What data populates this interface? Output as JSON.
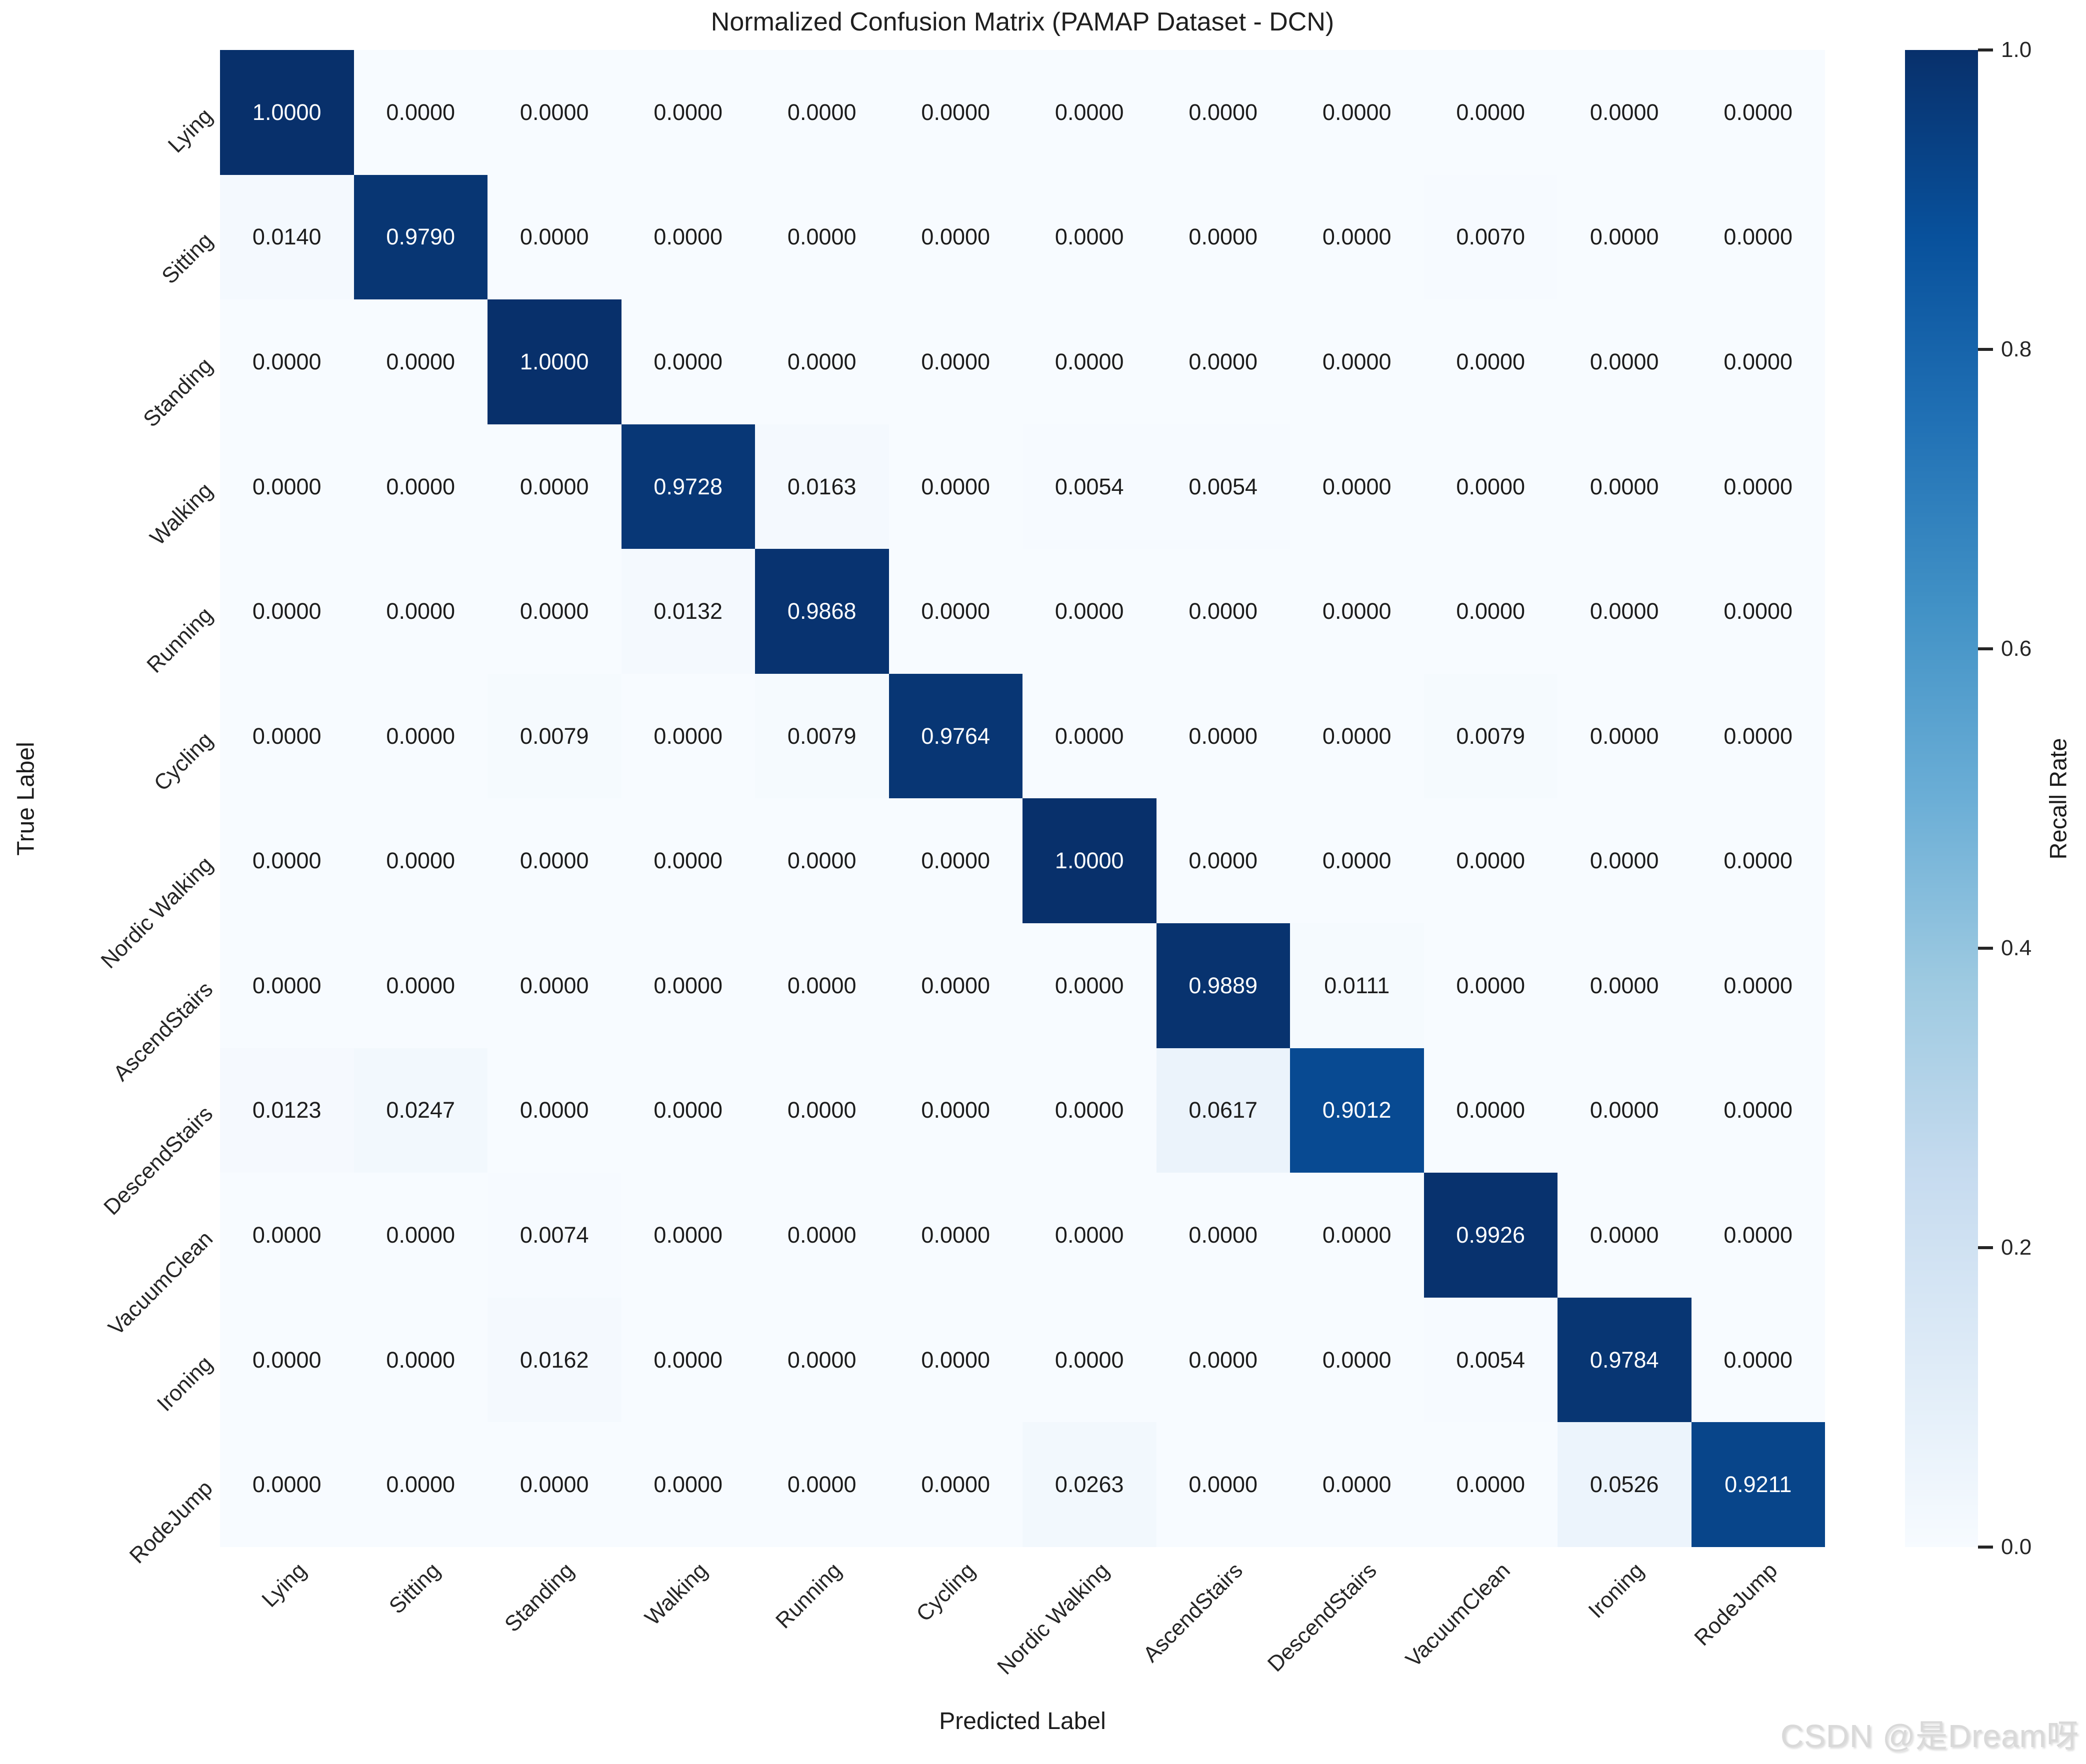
{
  "title": "Normalized Confusion Matrix (PAMAP Dataset - DCN)",
  "axes": {
    "x_label": "Predicted Label",
    "y_label": "True Label"
  },
  "colorbar": {
    "label": "Recall Rate",
    "ticks": [
      "1.0",
      "0.8",
      "0.6",
      "0.4",
      "0.2",
      "0.0"
    ]
  },
  "watermark": "CSDN @是Dream呀",
  "chart_data": {
    "type": "heatmap",
    "title": "Normalized Confusion Matrix (PAMAP Dataset - DCN)",
    "xlabel": "Predicted Label",
    "ylabel": "True Label",
    "colorbar_label": "Recall Rate",
    "categories": [
      "Lying",
      "Sitting",
      "Standing",
      "Walking",
      "Running",
      "Cycling",
      "Nordic Walking",
      "AscendStairs",
      "DescendStairs",
      "VacuumClean",
      "Ironing",
      "RodeJump"
    ],
    "rows": [
      [
        1.0,
        0.0,
        0.0,
        0.0,
        0.0,
        0.0,
        0.0,
        0.0,
        0.0,
        0.0,
        0.0,
        0.0
      ],
      [
        0.014,
        0.979,
        0.0,
        0.0,
        0.0,
        0.0,
        0.0,
        0.0,
        0.0,
        0.007,
        0.0,
        0.0
      ],
      [
        0.0,
        0.0,
        1.0,
        0.0,
        0.0,
        0.0,
        0.0,
        0.0,
        0.0,
        0.0,
        0.0,
        0.0
      ],
      [
        0.0,
        0.0,
        0.0,
        0.9728,
        0.0163,
        0.0,
        0.0054,
        0.0054,
        0.0,
        0.0,
        0.0,
        0.0
      ],
      [
        0.0,
        0.0,
        0.0,
        0.0132,
        0.9868,
        0.0,
        0.0,
        0.0,
        0.0,
        0.0,
        0.0,
        0.0
      ],
      [
        0.0,
        0.0,
        0.0079,
        0.0,
        0.0079,
        0.9764,
        0.0,
        0.0,
        0.0,
        0.0079,
        0.0,
        0.0
      ],
      [
        0.0,
        0.0,
        0.0,
        0.0,
        0.0,
        0.0,
        1.0,
        0.0,
        0.0,
        0.0,
        0.0,
        0.0
      ],
      [
        0.0,
        0.0,
        0.0,
        0.0,
        0.0,
        0.0,
        0.0,
        0.9889,
        0.0111,
        0.0,
        0.0,
        0.0
      ],
      [
        0.0123,
        0.0247,
        0.0,
        0.0,
        0.0,
        0.0,
        0.0,
        0.0617,
        0.9012,
        0.0,
        0.0,
        0.0
      ],
      [
        0.0,
        0.0,
        0.0074,
        0.0,
        0.0,
        0.0,
        0.0,
        0.0,
        0.0,
        0.9926,
        0.0,
        0.0
      ],
      [
        0.0,
        0.0,
        0.0162,
        0.0,
        0.0,
        0.0,
        0.0,
        0.0,
        0.0,
        0.0054,
        0.9784,
        0.0
      ],
      [
        0.0,
        0.0,
        0.0,
        0.0,
        0.0,
        0.0,
        0.0263,
        0.0,
        0.0,
        0.0,
        0.0526,
        0.9211
      ]
    ],
    "value_decimals": 4,
    "vmin": 0.0,
    "vmax": 1.0,
    "colormap": "Blues",
    "colormap_stops": [
      {
        "pos": 0.0,
        "color": "#f7fbff"
      },
      {
        "pos": 0.125,
        "color": "#deebf7"
      },
      {
        "pos": 0.25,
        "color": "#c6dbef"
      },
      {
        "pos": 0.375,
        "color": "#9ecae1"
      },
      {
        "pos": 0.5,
        "color": "#6baed6"
      },
      {
        "pos": 0.625,
        "color": "#4292c6"
      },
      {
        "pos": 0.75,
        "color": "#2171b5"
      },
      {
        "pos": 0.875,
        "color": "#08519c"
      },
      {
        "pos": 1.0,
        "color": "#08306b"
      }
    ],
    "legend_position": "right-colorbar",
    "grid": false
  }
}
